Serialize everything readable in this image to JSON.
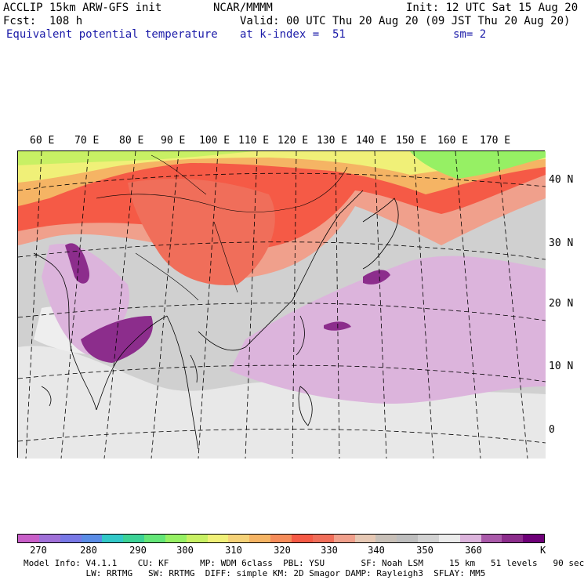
{
  "header": {
    "model": "ACCLIP 15km ARW-GFS init",
    "center": "NCAR/MMMM",
    "init": "Init: 12 UTC Sat 15 Aug 20",
    "fcst": "Fcst:  108 h",
    "valid": "Valid: 00 UTC Thu 20 Aug 20 (09 JST Thu 20 Aug 20)",
    "field": "Equivalent potential temperature",
    "level": "at k-index =  51",
    "smooth": "sm= 2"
  },
  "map": {
    "lon_labels": [
      "60 E",
      "70 E",
      "80 E",
      "90 E",
      "100 E",
      "110 E",
      "120 E",
      "130 E",
      "140 E",
      "150 E",
      "160 E",
      "170 E"
    ],
    "lat_labels": [
      "40 N",
      "30 N",
      "20 N",
      "10 N",
      "0"
    ]
  },
  "colorbar": {
    "colors": [
      "#c85ec8",
      "#a070d8",
      "#7878e6",
      "#5a8ce6",
      "#32c8c8",
      "#3cd296",
      "#64e678",
      "#96f064",
      "#c8f064",
      "#f0f078",
      "#f5d278",
      "#f5b464",
      "#f58c5a",
      "#f55a46",
      "#f06e5a",
      "#f0a08c",
      "#e6c8b4",
      "#c8c0b8",
      "#bebebe",
      "#d2d2d2",
      "#ebebeb",
      "#dcb4dc",
      "#aa5aaa",
      "#8c2d8c",
      "#6e0078"
    ],
    "ticks": [
      "270",
      "280",
      "290",
      "300",
      "310",
      "320",
      "330",
      "340",
      "350",
      "360"
    ],
    "unit": "K"
  },
  "footer": {
    "line1": "Model Info: V4.1.1    CU: KF      MP: WDM 6class  PBL: YSU       SF: Noah LSM     15 km   51 levels   90 sec",
    "line2": "            LW: RRTMG   SW: RRTMG  DIFF: simple KM: 2D Smagor DAMP: Rayleigh3  SFLAY: MM5"
  }
}
